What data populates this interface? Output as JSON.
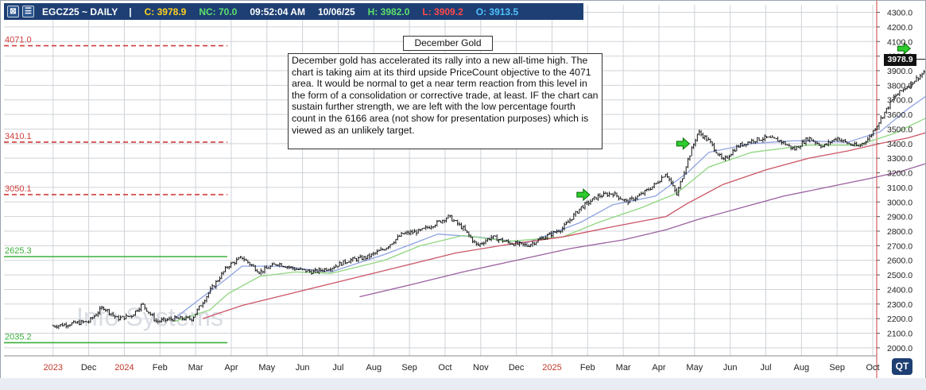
{
  "header": {
    "close_glyph": "⊠",
    "menu_glyph": "☰",
    "symbol": "EGCZ25 ~ DAILY",
    "separator": "|",
    "close": "C: 3978.9",
    "net_change": "NC: 70.0",
    "time": "09:52:04 AM",
    "date": "10/06/25",
    "high": "H: 3982.0",
    "low": "L: 3909.2",
    "open": "O: 3913.5",
    "colors": {
      "bar": "#1d3f73",
      "close": "#ffd21e",
      "net_change": "#5ee06a",
      "high": "#5ee06a",
      "low": "#ff4a4a",
      "open": "#4fc3ff"
    }
  },
  "annotation": {
    "title": "December Gold",
    "body": "December gold has accelerated its rally into a new all-time high.  The chart is taking aim at its third upside PriceCount objective to the 4071 area.  It would be normal to get a near term reaction from this level in the form of a consolidation or corrective trade, at least.  IF the chart can sustain further strength, we are left with the low percentage fourth count in the 6166 area (not show for presentation purposes) which is viewed as an unlikely target."
  },
  "watermark": "Info Systems",
  "logo_text": "QT",
  "last_price_tag": "3978.9",
  "chart_data": {
    "type": "candlestick",
    "x_tick_labels": [
      "2023",
      "Dec",
      "2024",
      "Feb",
      "Mar",
      "Apr",
      "May",
      "Jun",
      "Jul",
      "Aug",
      "Sep",
      "Oct",
      "Nov",
      "Dec",
      "2025",
      "Feb",
      "Mar",
      "Apr",
      "May",
      "Jun",
      "Jul",
      "Aug",
      "Sep",
      "Oct"
    ],
    "x_tick_colors": {
      "2023": "#c0392b",
      "2024": "#c0392b",
      "2025": "#c0392b"
    },
    "y_ticks": [
      2000,
      2100,
      2200,
      2300,
      2400,
      2500,
      2600,
      2700,
      2800,
      2900,
      3000,
      3100,
      3200,
      3300,
      3400,
      3500,
      3600,
      3700,
      3800,
      3900,
      4000,
      4100,
      4200,
      4300
    ],
    "ylim": [
      1945,
      4352
    ],
    "grid": true,
    "axis_side": "right",
    "ohlc_anchors": [
      {
        "x": 0.0,
        "price": 2150
      },
      {
        "x": 1.0,
        "price": 2180
      },
      {
        "x": 1.4,
        "price": 2280
      },
      {
        "x": 1.8,
        "price": 2200
      },
      {
        "x": 2.2,
        "price": 2220
      },
      {
        "x": 2.5,
        "price": 2300
      },
      {
        "x": 2.9,
        "price": 2180
      },
      {
        "x": 3.4,
        "price": 2200
      },
      {
        "x": 3.9,
        "price": 2200
      },
      {
        "x": 4.4,
        "price": 2390
      },
      {
        "x": 4.9,
        "price": 2560
      },
      {
        "x": 5.3,
        "price": 2620
      },
      {
        "x": 5.8,
        "price": 2520
      },
      {
        "x": 6.3,
        "price": 2580
      },
      {
        "x": 6.8,
        "price": 2540
      },
      {
        "x": 7.3,
        "price": 2520
      },
      {
        "x": 7.8,
        "price": 2550
      },
      {
        "x": 8.3,
        "price": 2600
      },
      {
        "x": 8.8,
        "price": 2620
      },
      {
        "x": 9.3,
        "price": 2680
      },
      {
        "x": 9.8,
        "price": 2780
      },
      {
        "x": 10.3,
        "price": 2800
      },
      {
        "x": 10.8,
        "price": 2860
      },
      {
        "x": 11.1,
        "price": 2900
      },
      {
        "x": 11.5,
        "price": 2820
      },
      {
        "x": 11.9,
        "price": 2700
      },
      {
        "x": 12.3,
        "price": 2760
      },
      {
        "x": 12.8,
        "price": 2720
      },
      {
        "x": 13.3,
        "price": 2700
      },
      {
        "x": 13.8,
        "price": 2760
      },
      {
        "x": 14.3,
        "price": 2820
      },
      {
        "x": 14.8,
        "price": 2960
      },
      {
        "x": 15.3,
        "price": 3040
      },
      {
        "x": 15.7,
        "price": 3060
      },
      {
        "x": 16.1,
        "price": 3000
      },
      {
        "x": 16.5,
        "price": 3050
      },
      {
        "x": 16.9,
        "price": 3120
      },
      {
        "x": 17.2,
        "price": 3200
      },
      {
        "x": 17.5,
        "price": 3050
      },
      {
        "x": 17.8,
        "price": 3280
      },
      {
        "x": 18.1,
        "price": 3480
      },
      {
        "x": 18.4,
        "price": 3420
      },
      {
        "x": 18.8,
        "price": 3280
      },
      {
        "x": 19.2,
        "price": 3380
      },
      {
        "x": 19.6,
        "price": 3420
      },
      {
        "x": 20.0,
        "price": 3440
      },
      {
        "x": 20.4,
        "price": 3420
      },
      {
        "x": 20.8,
        "price": 3360
      },
      {
        "x": 21.2,
        "price": 3440
      },
      {
        "x": 21.6,
        "price": 3380
      },
      {
        "x": 22.0,
        "price": 3440
      },
      {
        "x": 22.3,
        "price": 3400
      },
      {
        "x": 22.6,
        "price": 3380
      },
      {
        "x": 22.9,
        "price": 3440
      },
      {
        "x": 23.2,
        "price": 3560
      },
      {
        "x": 23.6,
        "price": 3720
      },
      {
        "x": 24.0,
        "price": 3800
      },
      {
        "x": 24.4,
        "price": 3880
      },
      {
        "x": 24.7,
        "price": 3978.9
      }
    ],
    "series": [
      {
        "kind": "moving-average",
        "color": "#8fa3e0",
        "points": [
          [
            3.4,
            2200
          ],
          [
            4.9,
            2480
          ],
          [
            5.3,
            2560
          ],
          [
            6.3,
            2560
          ],
          [
            7.8,
            2520
          ],
          [
            9.3,
            2640
          ],
          [
            10.8,
            2780
          ],
          [
            11.9,
            2760
          ],
          [
            13.3,
            2720
          ],
          [
            14.8,
            2860
          ],
          [
            15.7,
            2980
          ],
          [
            16.9,
            3040
          ],
          [
            17.8,
            3200
          ],
          [
            18.4,
            3340
          ],
          [
            19.6,
            3400
          ],
          [
            20.8,
            3420
          ],
          [
            22.3,
            3410
          ],
          [
            23.2,
            3480
          ],
          [
            24.0,
            3640
          ],
          [
            24.7,
            3760
          ]
        ]
      },
      {
        "kind": "moving-average",
        "color": "#8fd67f",
        "points": [
          [
            3.4,
            2180
          ],
          [
            4.4,
            2260
          ],
          [
            4.9,
            2370
          ],
          [
            5.8,
            2490
          ],
          [
            6.8,
            2520
          ],
          [
            7.8,
            2510
          ],
          [
            9.3,
            2600
          ],
          [
            10.3,
            2700
          ],
          [
            11.5,
            2770
          ],
          [
            12.8,
            2730
          ],
          [
            14.3,
            2760
          ],
          [
            15.3,
            2860
          ],
          [
            16.5,
            2960
          ],
          [
            17.5,
            3060
          ],
          [
            18.4,
            3240
          ],
          [
            19.6,
            3340
          ],
          [
            21.2,
            3390
          ],
          [
            22.6,
            3390
          ],
          [
            23.6,
            3470
          ],
          [
            24.7,
            3600
          ]
        ]
      },
      {
        "kind": "moving-average",
        "color": "#cc5566",
        "points": [
          [
            4.2,
            2200
          ],
          [
            5.3,
            2290
          ],
          [
            6.8,
            2380
          ],
          [
            8.3,
            2470
          ],
          [
            9.8,
            2560
          ],
          [
            11.3,
            2650
          ],
          [
            12.8,
            2710
          ],
          [
            14.3,
            2760
          ],
          [
            15.7,
            2830
          ],
          [
            17.2,
            2900
          ],
          [
            17.8,
            2990
          ],
          [
            18.8,
            3120
          ],
          [
            20.0,
            3220
          ],
          [
            21.2,
            3300
          ],
          [
            22.3,
            3350
          ],
          [
            23.2,
            3400
          ],
          [
            24.0,
            3440
          ],
          [
            24.7,
            3490
          ]
        ]
      },
      {
        "kind": "moving-average",
        "color": "#9b5fa0",
        "points": [
          [
            8.6,
            2350
          ],
          [
            10.0,
            2430
          ],
          [
            11.5,
            2520
          ],
          [
            13.0,
            2600
          ],
          [
            14.5,
            2680
          ],
          [
            16.0,
            2740
          ],
          [
            17.2,
            2810
          ],
          [
            18.1,
            2880
          ],
          [
            19.3,
            2960
          ],
          [
            20.5,
            3040
          ],
          [
            21.7,
            3100
          ],
          [
            22.9,
            3160
          ],
          [
            23.8,
            3210
          ],
          [
            24.7,
            3280
          ]
        ]
      }
    ],
    "horizontal_levels": [
      {
        "label": "4071.0",
        "price": 4071,
        "color": "#d23c3c",
        "style": "dashed"
      },
      {
        "label": "3410.1",
        "price": 3410,
        "color": "#d23c3c",
        "style": "dashed"
      },
      {
        "label": "3050.1",
        "price": 3050,
        "color": "#d23c3c",
        "style": "dashed"
      },
      {
        "label": "2625.3",
        "price": 2625,
        "color": "#3ab03a",
        "style": "solid"
      },
      {
        "label": "2035.2",
        "price": 2035,
        "color": "#3ab03a",
        "style": "solid"
      }
    ],
    "arrows": [
      {
        "x": 14.9,
        "price": 3050
      },
      {
        "x": 17.7,
        "price": 3400
      },
      {
        "x": 23.9,
        "price": 4052
      }
    ],
    "last_price": 3978.9,
    "price_line_color": "#d23c3c"
  }
}
